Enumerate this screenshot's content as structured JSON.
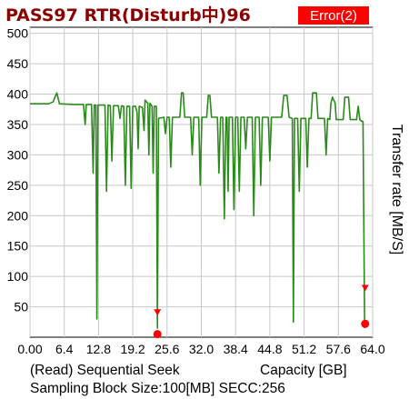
{
  "title": "PASS97 RTR(Disturb中)96",
  "badge": {
    "label": "Error(2)",
    "color": "#ff0000"
  },
  "footer": {
    "mode": "(Read) Sequential Seek",
    "capacity_label": "Capacity [GB]",
    "block": "Sampling Block Size:100[MB] SECC:256"
  },
  "chart_data": {
    "type": "line",
    "xlabel": "Capacity [GB]",
    "ylabel": "Transfer rate [MB/S]",
    "xlim": [
      0,
      64
    ],
    "ylim": [
      0,
      510
    ],
    "x_ticks": [
      "0.00",
      "6.4",
      "12.8",
      "19.2",
      "25.6",
      "32.0",
      "38.4",
      "44.8",
      "51.2",
      "57.6",
      "64.0"
    ],
    "y_ticks": [
      "50",
      "100",
      "150",
      "200",
      "250",
      "300",
      "350",
      "400",
      "450",
      "500"
    ],
    "grid": true,
    "line_color": "#2a8a1a",
    "series": [
      {
        "points": [
          [
            0,
            384
          ],
          [
            3.5,
            384
          ],
          [
            4.3,
            387
          ],
          [
            5.0,
            402
          ],
          [
            5.5,
            384
          ],
          [
            8.0,
            383
          ],
          [
            10.0,
            383
          ],
          [
            10.3,
            350
          ],
          [
            10.5,
            383
          ],
          [
            11.5,
            383
          ],
          [
            11.8,
            270
          ],
          [
            12.0,
            382
          ],
          [
            12.3,
            382
          ],
          [
            12.5,
            30
          ],
          [
            12.7,
            382
          ],
          [
            14.0,
            382
          ],
          [
            14.3,
            240
          ],
          [
            14.6,
            382
          ],
          [
            15.0,
            381
          ],
          [
            15.3,
            290
          ],
          [
            15.6,
            381
          ],
          [
            16.5,
            381
          ],
          [
            16.8,
            360
          ],
          [
            17.1,
            381
          ],
          [
            17.5,
            380
          ],
          [
            17.8,
            250
          ],
          [
            18.1,
            380
          ],
          [
            18.6,
            380
          ],
          [
            18.9,
            245
          ],
          [
            19.2,
            380
          ],
          [
            19.7,
            380
          ],
          [
            20.0,
            370
          ],
          [
            20.2,
            310
          ],
          [
            20.4,
            380
          ],
          [
            21.0,
            378
          ],
          [
            21.3,
            340
          ],
          [
            21.5,
            390
          ],
          [
            22.0,
            385
          ],
          [
            22.2,
            300
          ],
          [
            22.4,
            385
          ],
          [
            22.8,
            380
          ],
          [
            23.0,
            270
          ],
          [
            23.2,
            380
          ],
          [
            23.6,
            380
          ],
          [
            23.8,
            15
          ],
          [
            24.0,
            360
          ],
          [
            25.0,
            362
          ],
          [
            25.3,
            335
          ],
          [
            25.6,
            362
          ],
          [
            26.0,
            362
          ],
          [
            26.3,
            280
          ],
          [
            26.6,
            362
          ],
          [
            27.5,
            362
          ],
          [
            28.0,
            362
          ],
          [
            28.3,
            402
          ],
          [
            28.6,
            402
          ],
          [
            28.9,
            362
          ],
          [
            30.0,
            362
          ],
          [
            30.3,
            300
          ],
          [
            30.6,
            362
          ],
          [
            31.5,
            362
          ],
          [
            31.8,
            250
          ],
          [
            32.1,
            362
          ],
          [
            33.0,
            362
          ],
          [
            33.3,
            398
          ],
          [
            33.6,
            398
          ],
          [
            33.9,
            362
          ],
          [
            35.0,
            362
          ],
          [
            35.3,
            270
          ],
          [
            35.6,
            362
          ],
          [
            36.0,
            362
          ],
          [
            36.3,
            195
          ],
          [
            36.6,
            362
          ],
          [
            36.8,
            362
          ],
          [
            37.0,
            240
          ],
          [
            37.2,
            362
          ],
          [
            37.8,
            362
          ],
          [
            38.1,
            210
          ],
          [
            38.4,
            362
          ],
          [
            38.8,
            362
          ],
          [
            39.1,
            240
          ],
          [
            39.4,
            362
          ],
          [
            40.0,
            362
          ],
          [
            40.3,
            310
          ],
          [
            40.6,
            362
          ],
          [
            41.5,
            362
          ],
          [
            41.8,
            200
          ],
          [
            42.1,
            362
          ],
          [
            42.8,
            362
          ],
          [
            43.1,
            250
          ],
          [
            43.4,
            362
          ],
          [
            44.5,
            362
          ],
          [
            44.8,
            290
          ],
          [
            45.1,
            362
          ],
          [
            46.5,
            362
          ],
          [
            47.0,
            362
          ],
          [
            47.4,
            398
          ],
          [
            48.0,
            398
          ],
          [
            48.4,
            362
          ],
          [
            49.0,
            360
          ],
          [
            49.2,
            25
          ],
          [
            49.4,
            360
          ],
          [
            50.0,
            360
          ],
          [
            50.3,
            240
          ],
          [
            50.6,
            360
          ],
          [
            51.5,
            360
          ],
          [
            51.8,
            280
          ],
          [
            52.1,
            360
          ],
          [
            52.5,
            360
          ],
          [
            52.8,
            402
          ],
          [
            53.5,
            402
          ],
          [
            53.8,
            360
          ],
          [
            55.0,
            360
          ],
          [
            55.3,
            300
          ],
          [
            55.6,
            360
          ],
          [
            56.0,
            358
          ],
          [
            56.2,
            385
          ],
          [
            56.5,
            395
          ],
          [
            57.0,
            385
          ],
          [
            57.2,
            358
          ],
          [
            58.5,
            358
          ],
          [
            58.8,
            395
          ],
          [
            59.5,
            395
          ],
          [
            59.8,
            358
          ],
          [
            61.0,
            358
          ],
          [
            61.3,
            380
          ],
          [
            61.6,
            358
          ],
          [
            62.0,
            355
          ],
          [
            62.2,
            355
          ],
          [
            62.5,
            15
          ]
        ]
      }
    ],
    "error_markers": [
      {
        "x": 23.8,
        "y": 5
      },
      {
        "x": 62.6,
        "y": 22
      }
    ],
    "error_arrows": [
      {
        "x": 23.8,
        "y": 40
      },
      {
        "x": 62.6,
        "y": 80
      }
    ]
  }
}
